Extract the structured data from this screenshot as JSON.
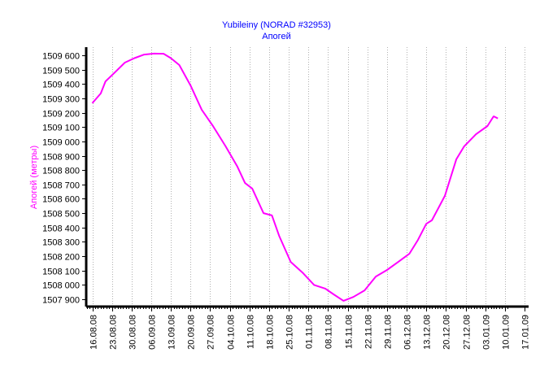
{
  "chart_data": {
    "type": "line",
    "title": "Yubileiny (NORAD #32953)",
    "subtitle": "Апогей",
    "xlabel": "",
    "ylabel": "Апогей (метры)",
    "x_units": "days since 16.08.08",
    "xlim": [
      -2,
      148
    ],
    "ylim": [
      1507850,
      1509657
    ],
    "grid": "vertical dotted",
    "colors": {
      "line": "#ff00ff",
      "title": "#0000ff",
      "ylabel": "#ff00ff",
      "axis": "#000000",
      "grid": "#b0b0b0"
    },
    "x_ticks": [
      "16.08.08",
      "23.08.08",
      "30.08.08",
      "06.09.08",
      "13.09.08",
      "20.09.08",
      "27.09.08",
      "04.10.08",
      "11.10.08",
      "18.10.08",
      "25.10.08",
      "01.11.08",
      "08.11.08",
      "15.11.08",
      "22.11.08",
      "29.11.08",
      "06.12.08",
      "13.12.08",
      "20.12.08",
      "27.12.08",
      "03.01.09",
      "10.01.09",
      "17.01.09"
    ],
    "y_ticks": [
      1507900,
      1508000,
      1508100,
      1508200,
      1508300,
      1508400,
      1508500,
      1508600,
      1508700,
      1508800,
      1508900,
      1509000,
      1509100,
      1509200,
      1509300,
      1509400,
      1509500,
      1509600
    ],
    "y_tick_labels": [
      "1507 900",
      "1508 000",
      "1508 100",
      "1508 200",
      "1508 300",
      "1508 400",
      "1508 500",
      "1508 600",
      "1508 700",
      "1508 800",
      "1508 900",
      "1509 000",
      "1509 100",
      "1509 200",
      "1509 300",
      "1509 400",
      "1509 500",
      "1509 600"
    ],
    "series": [
      {
        "name": "Апогей",
        "x": [
          0,
          3,
          4.7,
          8,
          11.6,
          15,
          18.5,
          22,
          25.4,
          28,
          31,
          35,
          39,
          43,
          47.5,
          51.7,
          54.4,
          57,
          61,
          64,
          66.6,
          70.7,
          74.9,
          79,
          83,
          86,
          89.5,
          93,
          97,
          101,
          105,
          109,
          113,
          116,
          119,
          121,
          125.6,
          129.7,
          132.5,
          136.7,
          140.8,
          143,
          144.5
        ],
        "y": [
          1509266,
          1509334,
          1509418,
          1509480,
          1509549,
          1509580,
          1509605,
          1509612,
          1509611,
          1509580,
          1509532,
          1509390,
          1509220,
          1509107,
          1508966,
          1508824,
          1508710,
          1508671,
          1508500,
          1508484,
          1508340,
          1508160,
          1508086,
          1508000,
          1507974,
          1507934,
          1507889,
          1507916,
          1507962,
          1508058,
          1508104,
          1508160,
          1508218,
          1508313,
          1508426,
          1508450,
          1508620,
          1508875,
          1508966,
          1509050,
          1509107,
          1509175,
          1509160
        ]
      }
    ]
  }
}
